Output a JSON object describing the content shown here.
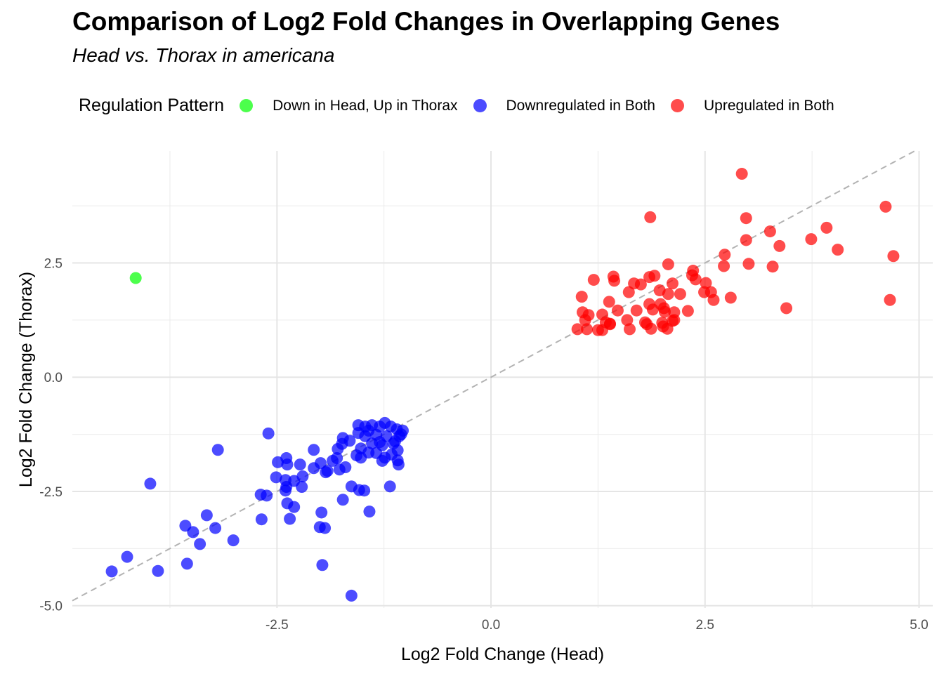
{
  "chart_data": {
    "type": "scatter",
    "title": "Comparison of Log2 Fold Changes in Overlapping Genes",
    "subtitle": "Head vs. Thorax in americana",
    "xlabel": "Log2 Fold Change (Head)",
    "ylabel": "Log2 Fold Change (Thorax)",
    "xlim": [
      -4.89,
      5.16
    ],
    "ylim": [
      -5.05,
      4.95
    ],
    "xticks": [
      -2.5,
      0.0,
      2.5,
      5.0
    ],
    "xtick_labels": [
      "-2.5",
      "0.0",
      "2.5",
      "5.0"
    ],
    "yticks": [
      -5.0,
      -2.5,
      0.0,
      2.5
    ],
    "ytick_labels": [
      "-5.0",
      "-2.5",
      "0.0",
      "2.5"
    ],
    "grid": true,
    "reference_line": {
      "type": "y=x",
      "style": "dashed",
      "color": "#b3b3b3"
    },
    "legend": {
      "title": "Regulation Pattern",
      "placement": "top"
    },
    "series": [
      {
        "name": "Down in Head, Up in Thorax",
        "color": "#00ff00",
        "points": [
          [
            -4.15,
            2.17
          ]
        ]
      },
      {
        "name": "Downregulated in Both",
        "color": "#0000ff",
        "points": [
          [
            -4.43,
            -4.25
          ],
          [
            -4.25,
            -3.93
          ],
          [
            -3.89,
            -4.24
          ],
          [
            -3.55,
            -4.08
          ],
          [
            -3.98,
            -2.33
          ],
          [
            -3.57,
            -3.25
          ],
          [
            -3.32,
            -3.02
          ],
          [
            -3.48,
            -3.39
          ],
          [
            -3.22,
            -3.3
          ],
          [
            -3.4,
            -3.65
          ],
          [
            -3.01,
            -3.57
          ],
          [
            -3.19,
            -1.59
          ],
          [
            -2.6,
            -1.23
          ],
          [
            -2.69,
            -2.57
          ],
          [
            -2.62,
            -2.59
          ],
          [
            -2.68,
            -3.11
          ],
          [
            -2.49,
            -1.86
          ],
          [
            -2.51,
            -2.19
          ],
          [
            -2.39,
            -1.77
          ],
          [
            -2.38,
            -1.91
          ],
          [
            -2.4,
            -2.25
          ],
          [
            -2.39,
            -2.4
          ],
          [
            -2.4,
            -2.48
          ],
          [
            -2.38,
            -2.76
          ],
          [
            -2.35,
            -3.1
          ],
          [
            -2.3,
            -2.84
          ],
          [
            -2.3,
            -2.27
          ],
          [
            -2.23,
            -1.91
          ],
          [
            -2.2,
            -2.17
          ],
          [
            -2.21,
            -2.4
          ],
          [
            -2.07,
            -1.59
          ],
          [
            -2.07,
            -1.99
          ],
          [
            -1.99,
            -1.88
          ],
          [
            -1.93,
            -2.08
          ],
          [
            -1.91,
            -2.05
          ],
          [
            -1.85,
            -1.83
          ],
          [
            -1.8,
            -1.77
          ],
          [
            -1.94,
            -3.3
          ],
          [
            -1.98,
            -2.96
          ],
          [
            -2.0,
            -3.28
          ],
          [
            -1.97,
            -4.11
          ],
          [
            -1.77,
            -2.02
          ],
          [
            -1.79,
            -1.57
          ],
          [
            -1.74,
            -1.46
          ],
          [
            -1.73,
            -1.33
          ],
          [
            -1.7,
            -1.97
          ],
          [
            -1.65,
            -1.39
          ],
          [
            -1.73,
            -2.68
          ],
          [
            -1.63,
            -2.39
          ],
          [
            -1.54,
            -2.47
          ],
          [
            -1.48,
            -2.48
          ],
          [
            -1.63,
            -4.78
          ],
          [
            -1.42,
            -2.94
          ],
          [
            -1.18,
            -2.39
          ],
          [
            -1.55,
            -1.05
          ],
          [
            -1.47,
            -1.08
          ],
          [
            -1.39,
            -1.05
          ],
          [
            -1.3,
            -1.08
          ],
          [
            -1.24,
            -1.0
          ],
          [
            -1.17,
            -1.08
          ],
          [
            -1.1,
            -1.14
          ],
          [
            -1.03,
            -1.17
          ],
          [
            -1.07,
            -1.29
          ],
          [
            -1.12,
            -1.4
          ],
          [
            -1.27,
            -1.49
          ],
          [
            -1.39,
            -1.45
          ],
          [
            -1.52,
            -1.56
          ],
          [
            -1.57,
            -1.71
          ],
          [
            -1.52,
            -1.76
          ],
          [
            -1.43,
            -1.65
          ],
          [
            -1.34,
            -1.66
          ],
          [
            -1.24,
            -1.76
          ],
          [
            -1.27,
            -1.83
          ],
          [
            -1.16,
            -1.69
          ],
          [
            -1.09,
            -1.82
          ],
          [
            -1.08,
            -1.91
          ],
          [
            -1.14,
            -1.45
          ],
          [
            -1.47,
            -1.29
          ],
          [
            -1.43,
            -1.17
          ],
          [
            -1.55,
            -1.22
          ],
          [
            -1.34,
            -1.26
          ],
          [
            -1.22,
            -1.29
          ],
          [
            -1.05,
            -1.25
          ],
          [
            -1.09,
            -1.6
          ],
          [
            -1.3,
            -1.42
          ]
        ]
      },
      {
        "name": "Upregulated in Both",
        "color": "#ff0000",
        "points": [
          [
            2.93,
            4.45
          ],
          [
            1.86,
            3.5
          ],
          [
            2.98,
            3.48
          ],
          [
            4.61,
            3.73
          ],
          [
            3.26,
            3.19
          ],
          [
            3.92,
            3.27
          ],
          [
            2.98,
            3.0
          ],
          [
            3.37,
            2.87
          ],
          [
            3.74,
            3.02
          ],
          [
            4.05,
            2.79
          ],
          [
            4.7,
            2.65
          ],
          [
            2.73,
            2.68
          ],
          [
            3.01,
            2.48
          ],
          [
            2.72,
            2.43
          ],
          [
            3.29,
            2.42
          ],
          [
            2.07,
            2.47
          ],
          [
            1.2,
            2.13
          ],
          [
            1.43,
            2.2
          ],
          [
            1.44,
            2.11
          ],
          [
            1.91,
            2.22
          ],
          [
            1.85,
            2.19
          ],
          [
            2.36,
            2.33
          ],
          [
            2.35,
            2.23
          ],
          [
            2.39,
            2.14
          ],
          [
            2.51,
            2.06
          ],
          [
            2.12,
            2.05
          ],
          [
            1.67,
            2.05
          ],
          [
            1.75,
            2.03
          ],
          [
            1.61,
            1.86
          ],
          [
            1.97,
            1.9
          ],
          [
            2.49,
            1.86
          ],
          [
            2.21,
            1.82
          ],
          [
            2.07,
            1.82
          ],
          [
            2.57,
            1.86
          ],
          [
            2.8,
            1.74
          ],
          [
            2.6,
            1.69
          ],
          [
            3.45,
            1.51
          ],
          [
            4.66,
            1.69
          ],
          [
            1.38,
            1.65
          ],
          [
            1.06,
            1.76
          ],
          [
            1.48,
            1.46
          ],
          [
            1.7,
            1.46
          ],
          [
            1.89,
            1.48
          ],
          [
            1.98,
            1.6
          ],
          [
            2.3,
            1.45
          ],
          [
            2.14,
            1.42
          ],
          [
            2.03,
            1.43
          ],
          [
            1.3,
            1.37
          ],
          [
            1.1,
            1.25
          ],
          [
            1.34,
            1.2
          ],
          [
            1.39,
            1.17
          ],
          [
            1.59,
            1.25
          ],
          [
            1.8,
            1.2
          ],
          [
            1.82,
            1.16
          ],
          [
            2.0,
            1.19
          ],
          [
            2.01,
            1.11
          ],
          [
            2.12,
            1.23
          ],
          [
            1.39,
            1.16
          ],
          [
            1.01,
            1.05
          ],
          [
            1.12,
            1.05
          ],
          [
            1.25,
            1.03
          ],
          [
            1.3,
            1.03
          ],
          [
            1.62,
            1.05
          ],
          [
            1.87,
            1.06
          ],
          [
            2.06,
            1.06
          ],
          [
            2.14,
            1.25
          ],
          [
            2.02,
            1.51
          ],
          [
            1.85,
            1.6
          ],
          [
            1.14,
            1.36
          ],
          [
            1.07,
            1.42
          ]
        ]
      }
    ]
  }
}
